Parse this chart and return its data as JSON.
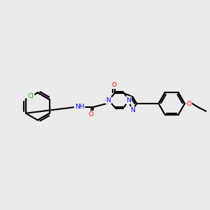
{
  "bg": "#ebebeb",
  "bc": "#000000",
  "nc": "#0000ff",
  "oc": "#ff0000",
  "clc": "#00bb00",
  "lw": 1.5,
  "fs": 6.5,
  "figsize": [
    3.0,
    3.0
  ],
  "dpi": 100,
  "xlim": [
    0,
    300
  ],
  "ylim": [
    0,
    300
  ]
}
